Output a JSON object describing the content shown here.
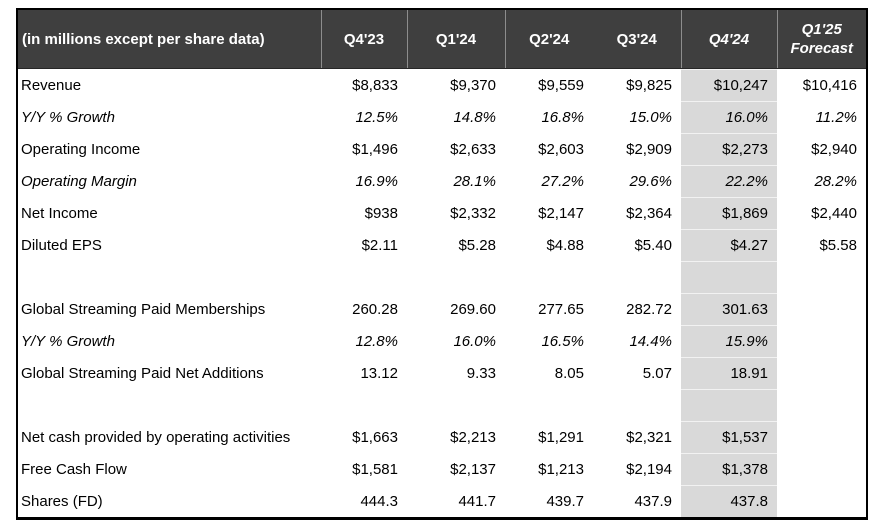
{
  "table": {
    "unit_note": "(in millions except per share data)",
    "columns": [
      {
        "label": "Q4'23"
      },
      {
        "label": "Q1'24"
      },
      {
        "label": "Q2'24"
      },
      {
        "label": "Q3'24"
      },
      {
        "label": "Q4'24",
        "italic": true,
        "highlight": true
      },
      {
        "label": "Q1'25 Forecast",
        "italic": true
      }
    ],
    "rows": [
      {
        "label": "Revenue",
        "italic": false,
        "values": [
          "$8,833",
          "$9,370",
          "$9,559",
          "$9,825",
          "$10,247",
          "$10,416"
        ]
      },
      {
        "label": "Y/Y % Growth",
        "italic": true,
        "values": [
          "12.5%",
          "14.8%",
          "16.8%",
          "15.0%",
          "16.0%",
          "11.2%"
        ]
      },
      {
        "label": "Operating Income",
        "italic": false,
        "values": [
          "$1,496",
          "$2,633",
          "$2,603",
          "$2,909",
          "$2,273",
          "$2,940"
        ]
      },
      {
        "label": "Operating Margin",
        "italic": true,
        "values": [
          "16.9%",
          "28.1%",
          "27.2%",
          "29.6%",
          "22.2%",
          "28.2%"
        ]
      },
      {
        "label": "Net Income",
        "italic": false,
        "values": [
          "$938",
          "$2,332",
          "$2,147",
          "$2,364",
          "$1,869",
          "$2,440"
        ]
      },
      {
        "label": "Diluted EPS",
        "italic": false,
        "values": [
          "$2.11",
          "$5.28",
          "$4.88",
          "$5.40",
          "$4.27",
          "$5.58"
        ]
      },
      {
        "label": "",
        "italic": false,
        "values": [
          "",
          "",
          "",
          "",
          "",
          ""
        ]
      },
      {
        "label": "Global Streaming Paid Memberships",
        "italic": false,
        "values": [
          "260.28",
          "269.60",
          "277.65",
          "282.72",
          "301.63",
          ""
        ]
      },
      {
        "label": "Y/Y % Growth",
        "italic": true,
        "values": [
          "12.8%",
          "16.0%",
          "16.5%",
          "14.4%",
          "15.9%",
          ""
        ]
      },
      {
        "label": "Global Streaming Paid Net Additions",
        "italic": false,
        "values": [
          "13.12",
          "9.33",
          "8.05",
          "5.07",
          "18.91",
          ""
        ]
      },
      {
        "label": "",
        "italic": false,
        "values": [
          "",
          "",
          "",
          "",
          "",
          ""
        ]
      },
      {
        "label": "Net cash provided by operating activities",
        "italic": false,
        "values": [
          "$1,663",
          "$2,213",
          "$1,291",
          "$2,321",
          "$1,537",
          ""
        ]
      },
      {
        "label": "Free Cash Flow",
        "italic": false,
        "values": [
          "$1,581",
          "$2,137",
          "$1,213",
          "$2,194",
          "$1,378",
          ""
        ]
      },
      {
        "label": "Shares (FD)",
        "italic": false,
        "values": [
          "444.3",
          "441.7",
          "439.7",
          "437.9",
          "437.8",
          ""
        ]
      }
    ]
  },
  "colors": {
    "header_background": "#3f3f3f",
    "header_text": "#ffffff",
    "header_separator": "#8d8d8d",
    "highlight_column": "#d9d9d9",
    "outer_border": "#000000",
    "body_text": "#000000"
  }
}
